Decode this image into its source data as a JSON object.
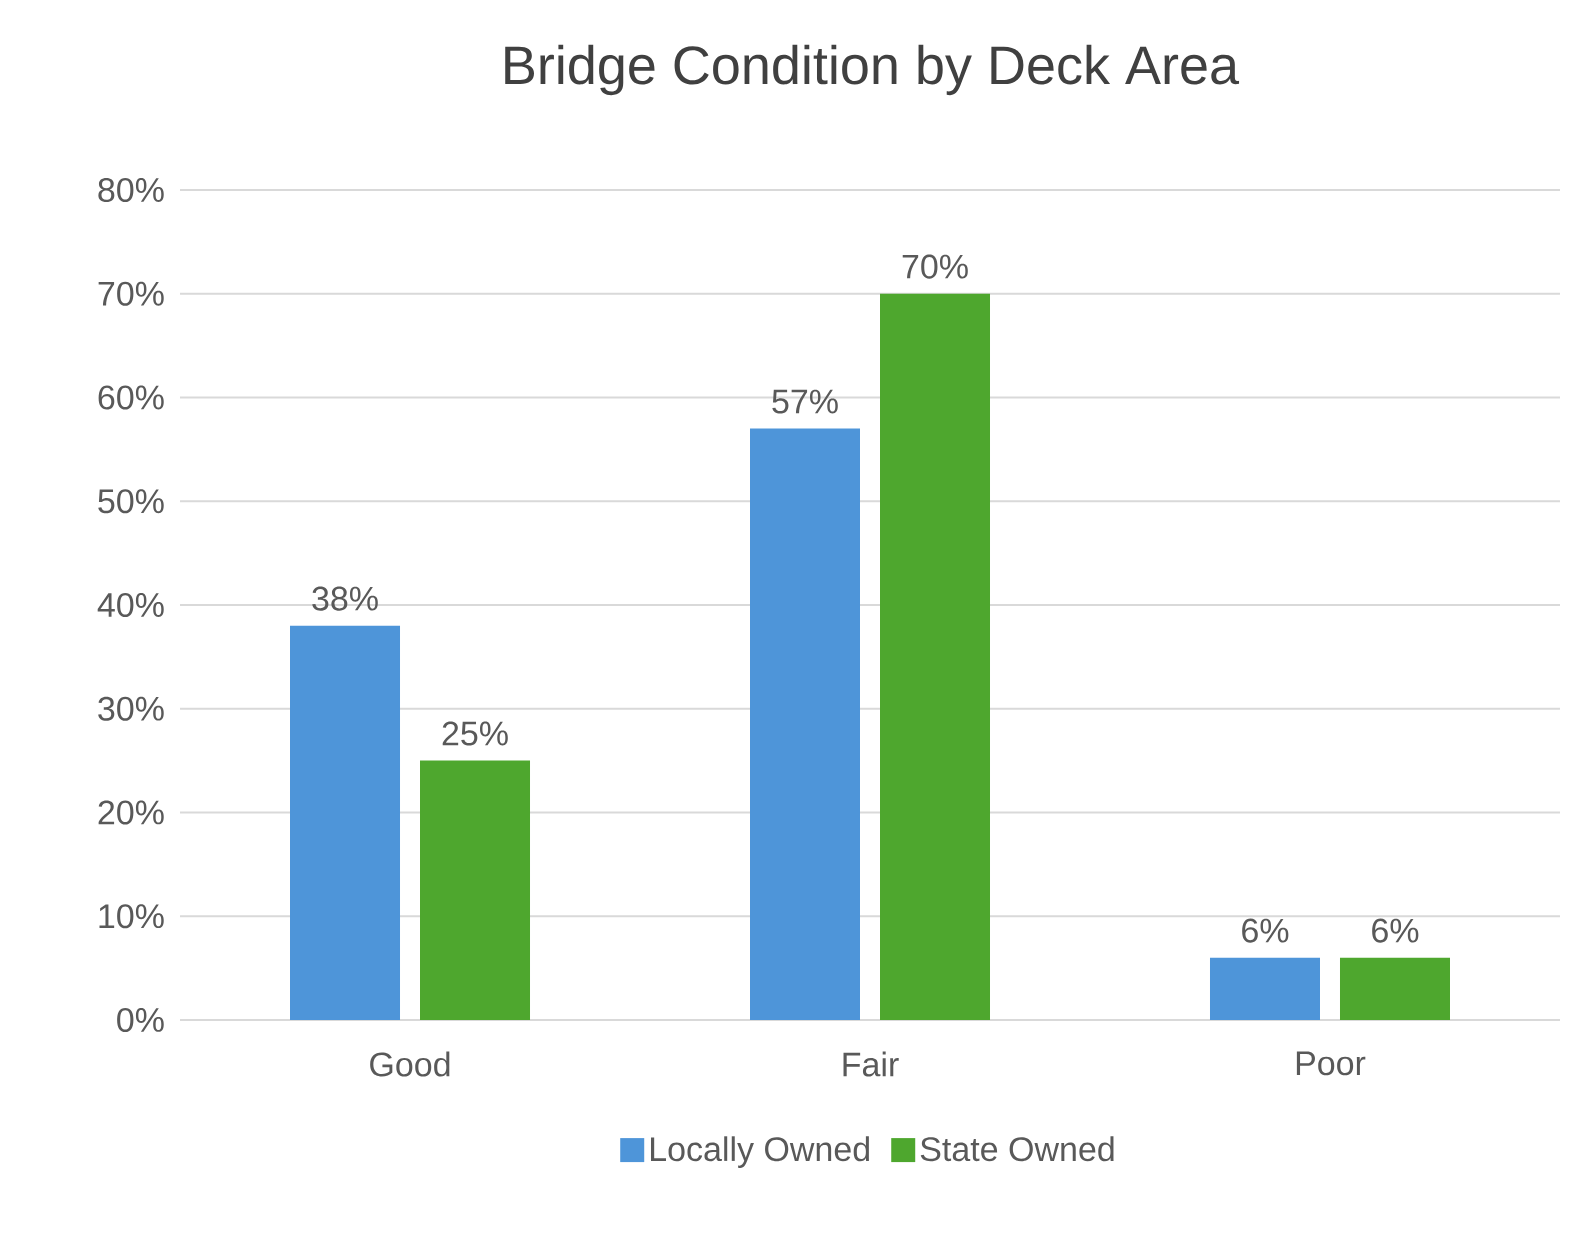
{
  "chart_data": {
    "type": "bar",
    "title": "Bridge Condition by Deck Area",
    "categories": [
      "Good",
      "Fair",
      "Poor"
    ],
    "series": [
      {
        "name": "Locally Owned",
        "color": "#4e95d9",
        "values": [
          38,
          57,
          6
        ],
        "value_labels": [
          "38%",
          "57%",
          "6%"
        ]
      },
      {
        "name": "State Owned",
        "color": "#4ea72e",
        "values": [
          25,
          70,
          6
        ],
        "value_labels": [
          "25%",
          "70%",
          "6%"
        ]
      }
    ],
    "ylim": [
      0,
      80
    ],
    "yticks": [
      {
        "value": 0,
        "label": "0%"
      },
      {
        "value": 10,
        "label": "10%"
      },
      {
        "value": 20,
        "label": "20%"
      },
      {
        "value": 30,
        "label": "30%"
      },
      {
        "value": 40,
        "label": "40%"
      },
      {
        "value": 50,
        "label": "50%"
      },
      {
        "value": 60,
        "label": "60%"
      },
      {
        "value": 70,
        "label": "70%"
      },
      {
        "value": 80,
        "label": "80%"
      }
    ],
    "grid": "y",
    "legend": "bottom"
  }
}
